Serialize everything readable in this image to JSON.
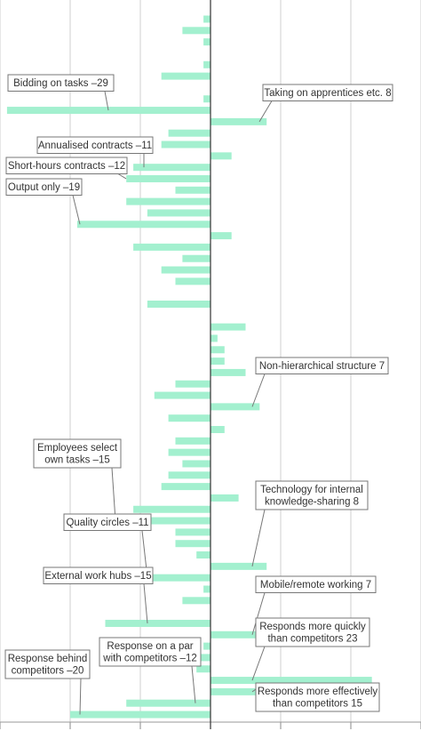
{
  "chart_data": {
    "type": "bar",
    "orientation": "horizontal",
    "xlim": [
      -30,
      30
    ],
    "x_ticks": [
      -30,
      -20,
      -10,
      0,
      10,
      20,
      30
    ],
    "grid": "vertical",
    "colors": {
      "bar": "#a3f0cf",
      "zero_line": "#333333",
      "grid": "#cfcfcf",
      "callout_border": "#777777"
    },
    "values": [
      -1,
      -4,
      -1,
      0,
      -1,
      -7,
      0,
      -1,
      -29,
      8,
      -6,
      -7,
      3,
      -11,
      -12,
      -5,
      -12,
      -9,
      -19,
      3,
      -11,
      -4,
      -7,
      -5,
      0,
      -9,
      0,
      5,
      1,
      2,
      2,
      5,
      -5,
      -8,
      7,
      -6,
      2,
      -5,
      -6,
      -4,
      -6,
      -7,
      4,
      -11,
      -15,
      -5,
      -5,
      -2,
      8,
      -11,
      -1,
      -4,
      0,
      -15,
      7,
      -1,
      -2,
      -2,
      23,
      15,
      -12,
      -20
    ],
    "annotations": [
      {
        "label": "Bidding on tasks –29",
        "bar": 8,
        "side": "left"
      },
      {
        "label": "Taking on apprentices etc. 8",
        "bar": 9,
        "side": "right"
      },
      {
        "label": "Annualised contracts –11",
        "bar": 13,
        "side": "left"
      },
      {
        "label": "Short-hours contracts –12",
        "bar": 14,
        "side": "left"
      },
      {
        "label": "Output only –19",
        "bar": 18,
        "side": "left"
      },
      {
        "label": "Non-hierarchical structure 7",
        "bar": 34,
        "side": "right"
      },
      {
        "label": "Employees select\nown tasks –15",
        "bar": 44,
        "side": "left"
      },
      {
        "label": "Technology for internal\nknowledge-sharing 8",
        "bar": 48,
        "side": "right"
      },
      {
        "label": "Quality circles –11",
        "bar": 49,
        "side": "left"
      },
      {
        "label": "External work hubs –15",
        "bar": 53,
        "side": "left"
      },
      {
        "label": "Mobile/remote working 7",
        "bar": 54,
        "side": "right"
      },
      {
        "label": "Responds more quickly\nthan competitors 23",
        "bar": 58,
        "side": "right"
      },
      {
        "label": "Responds more effectively\nthan competitors 15",
        "bar": 59,
        "side": "right"
      },
      {
        "label": "Response on a par\nwith competitors –12",
        "bar": 60,
        "side": "left"
      },
      {
        "label": "Response behind\ncompetitors –20",
        "bar": 61,
        "side": "left"
      }
    ]
  }
}
